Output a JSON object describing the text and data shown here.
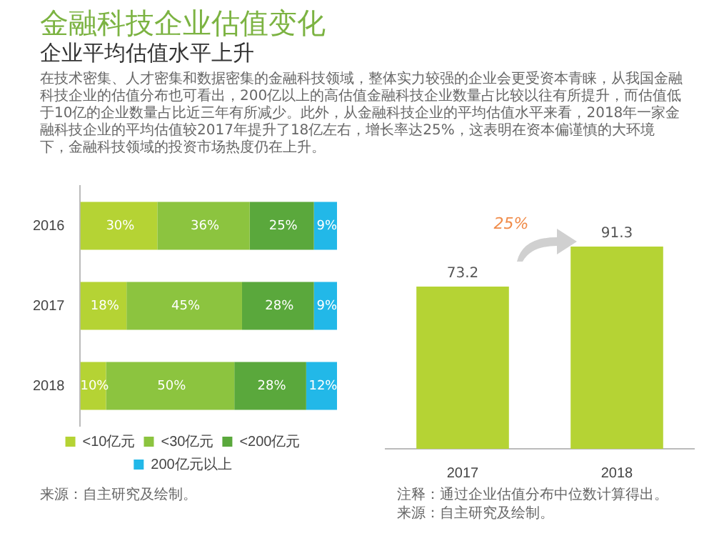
{
  "chart_data": [
    {
      "type": "bar",
      "title": "金融科技企业估值变化",
      "subtitle": "企业平均估值水平上升",
      "orientation": "horizontal",
      "stacked": true,
      "legend": "bottom",
      "categories": [
        "2016",
        "2017",
        "2018"
      ],
      "series": [
        {
          "name": "<10亿元",
          "color": "#b5d334",
          "values": [
            30,
            18,
            10
          ],
          "value_labels": [
            "30%",
            "18%",
            "10%"
          ]
        },
        {
          "name": "<30亿元",
          "color": "#8cc43f",
          "values": [
            36,
            45,
            50
          ],
          "value_labels": [
            "36%",
            "45%",
            "50%"
          ]
        },
        {
          "name": "<200亿元",
          "color": "#5aa83c",
          "values": [
            25,
            28,
            28
          ],
          "value_labels": [
            "25%",
            "28%",
            "28%"
          ]
        },
        {
          "name": "200亿元以上",
          "color": "#22b8e8",
          "values": [
            9,
            9,
            12
          ],
          "value_labels": [
            "9%",
            "9%",
            "12%"
          ]
        }
      ],
      "annotations": [
        "在技术密集、人才密集和数据密集的金融科技领域，整体实力较强的企业会更受资本青睐，从我国金融科技企业的估值分布也可看出，200亿以上的高估值金融科技企业数量占比较以往有所提升，而估值低于10亿的企业数量占比近三年有所减少。此外，从金融科技企业的平均估值水平来看，2018年一家金融科技企业的平均估值较2017年提升了18亿左右，增长率达25%，这表明在资本偏谨慎的大环境下，金融科技领域的投资市场热度仍在上升。",
        "来源：自主研究及绘制。"
      ]
    },
    {
      "type": "bar",
      "categories": [
        "2017",
        "2018"
      ],
      "values": [
        73.2,
        91.3
      ],
      "color": "#b5d334",
      "data_labels": true,
      "annotations": [
        "25%",
        "注释：通过企业估值分布中位数计算得出。",
        "来源：自主研究及绘制。"
      ]
    }
  ]
}
